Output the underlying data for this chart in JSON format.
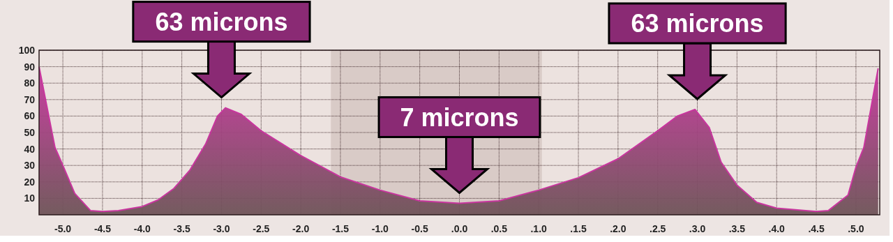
{
  "chart_data": {
    "type": "area",
    "x": [
      -5.3,
      -5.1,
      -5.0,
      -4.85,
      -4.65,
      -4.5,
      -4.3,
      -4.0,
      -3.8,
      -3.6,
      -3.4,
      -3.2,
      -3.05,
      -2.95,
      -2.75,
      -2.5,
      -2.0,
      -1.5,
      -1.0,
      -0.5,
      0.0,
      0.5,
      1.0,
      1.5,
      2.0,
      2.5,
      2.75,
      2.97,
      3.15,
      3.3,
      3.5,
      3.75,
      4.0,
      4.5,
      4.65,
      4.9,
      5.0,
      5.1,
      5.28
    ],
    "series": [
      {
        "color": "#c8369e",
        "values": [
          90,
          41,
          30,
          13,
          2.5,
          2,
          2.5,
          5,
          9,
          16,
          27,
          43,
          60,
          65,
          61,
          51,
          36,
          23,
          15,
          8.5,
          7,
          8.5,
          15,
          22.5,
          34,
          51,
          60,
          64,
          53,
          32,
          18,
          7.5,
          4,
          2,
          2.5,
          12,
          29,
          41,
          89
        ]
      }
    ],
    "xlim": [
      -5.3,
      5.3
    ],
    "xticks": [
      {
        "value": -5.0,
        "label": "-5.0"
      },
      {
        "value": -4.5,
        "label": "-4.5"
      },
      {
        "value": -4.0,
        "label": "-4.0"
      },
      {
        "value": -3.5,
        "label": "-3.5"
      },
      {
        "value": -3.0,
        "label": "-3.0"
      },
      {
        "value": -2.5,
        "label": "-2.5"
      },
      {
        "value": -2.0,
        "label": "-2.0"
      },
      {
        "value": -1.5,
        "label": "-1.5"
      },
      {
        "value": -1.0,
        "label": "-1.0"
      },
      {
        "value": -0.5,
        "label": "-0.5"
      },
      {
        "value": 0,
        "label": ".0.0"
      },
      {
        "value": 0.5,
        "label": ".0.5"
      },
      {
        "value": 1.0,
        "label": ".1.0"
      },
      {
        "value": 1.5,
        "label": ".1.5"
      },
      {
        "value": 2.0,
        "label": ".2.0"
      },
      {
        "value": 2.5,
        "label": ".2.5"
      },
      {
        "value": 3.0,
        "label": ".3.0"
      },
      {
        "value": 3.5,
        "label": ".3.5"
      },
      {
        "value": 4.0,
        "label": ".4.0"
      },
      {
        "value": 4.5,
        "label": ".4.5"
      },
      {
        "value": 5.0,
        "label": ".5.0"
      }
    ],
    "ylim": [
      0,
      100
    ],
    "yticks": [
      10,
      20,
      30,
      40,
      50,
      60,
      70,
      80,
      90,
      100
    ],
    "grid": true,
    "bands": [
      {
        "axis": "x",
        "from": -1.62,
        "to": 1.04,
        "color": "#d9cbc7"
      }
    ],
    "annotations": [
      {
        "text": "63 microns",
        "x": -3.0,
        "y": 65
      },
      {
        "text": "7 microns",
        "x": 0.0,
        "y": 7
      },
      {
        "text": "63 microns",
        "x": 3.0,
        "y": 64
      }
    ]
  }
}
